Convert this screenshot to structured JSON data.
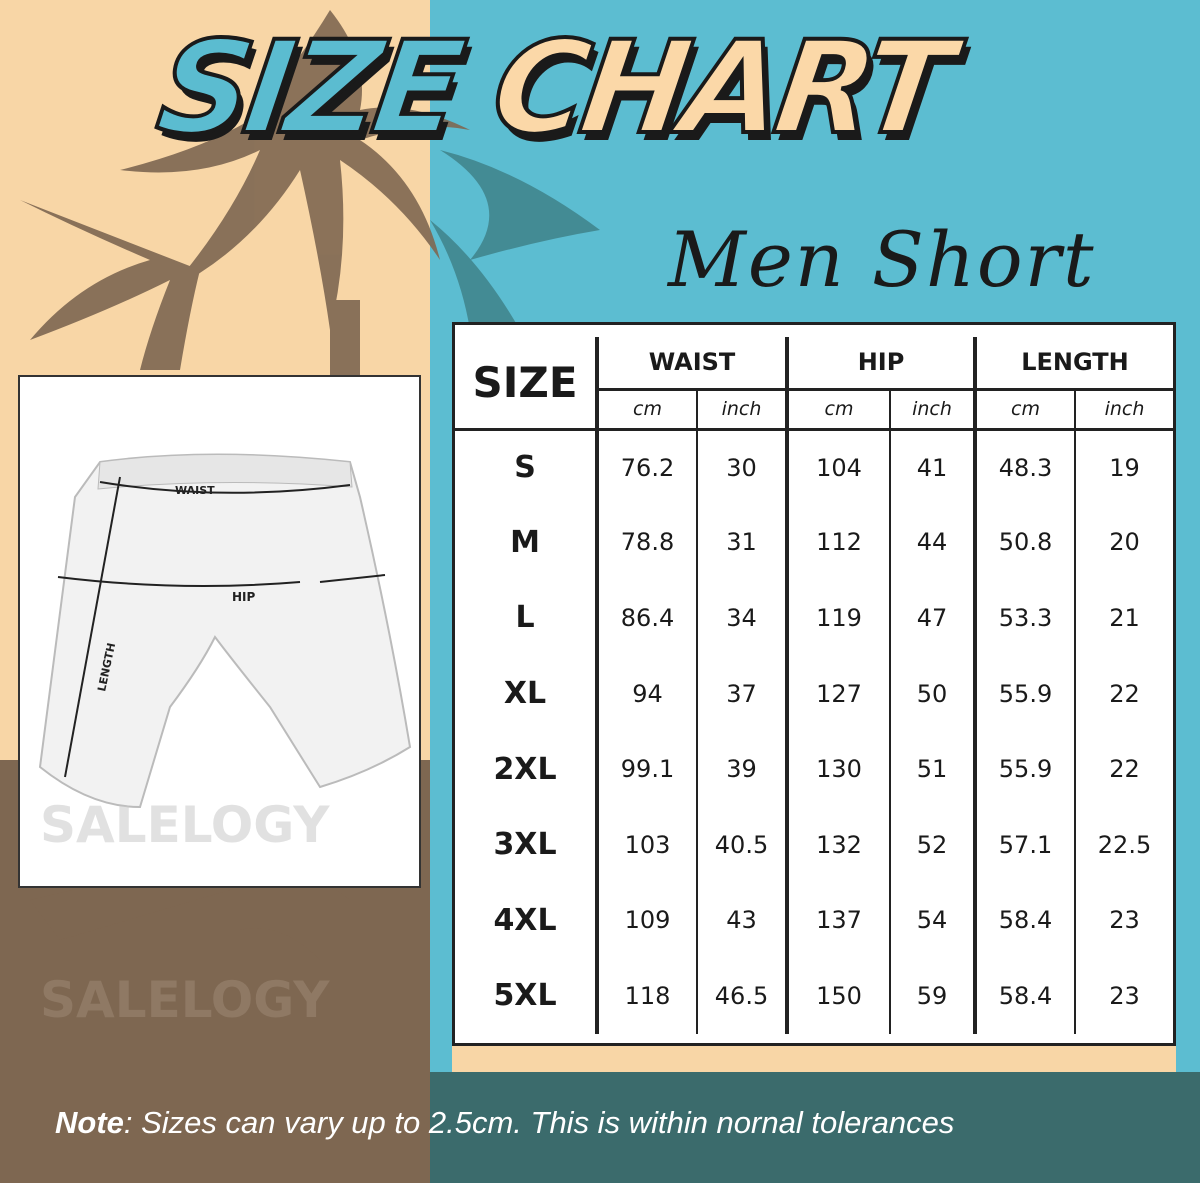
{
  "title": {
    "word1": "SIZE",
    "word2": "CHART"
  },
  "subtitle": "Men Short",
  "watermark": "SALELOGY",
  "illustration": {
    "labels": {
      "waist": "WAIST",
      "hip": "HIP",
      "length": "LENGTH"
    }
  },
  "table": {
    "size_header": "SIZE",
    "groups": [
      "WAIST",
      "HIP",
      "LENGTH"
    ],
    "units": [
      "cm",
      "inch",
      "cm",
      "inch",
      "cm",
      "inch"
    ],
    "rows": [
      {
        "size": "S",
        "values": [
          "76.2",
          "30",
          "104",
          "41",
          "48.3",
          "19"
        ]
      },
      {
        "size": "M",
        "values": [
          "78.8",
          "31",
          "112",
          "44",
          "50.8",
          "20"
        ]
      },
      {
        "size": "L",
        "values": [
          "86.4",
          "34",
          "119",
          "47",
          "53.3",
          "21"
        ]
      },
      {
        "size": "XL",
        "values": [
          "94",
          "37",
          "127",
          "50",
          "55.9",
          "22"
        ]
      },
      {
        "size": "2XL",
        "values": [
          "99.1",
          "39",
          "130",
          "51",
          "55.9",
          "22"
        ]
      },
      {
        "size": "3XL",
        "values": [
          "103",
          "40.5",
          "132",
          "52",
          "57.1",
          "22.5"
        ]
      },
      {
        "size": "4XL",
        "values": [
          "109",
          "43",
          "137",
          "54",
          "58.4",
          "23"
        ]
      },
      {
        "size": "5XL",
        "values": [
          "118",
          "46.5",
          "150",
          "59",
          "58.4",
          "23"
        ]
      }
    ]
  },
  "note": {
    "label": "Note",
    "text": ": Sizes can vary up to 2.5cm. This is within nornal tolerances"
  },
  "colors": {
    "teal": "#5cbdd1",
    "beige": "#f8d6a6",
    "brown": "#7e6751",
    "dark_teal": "#3b6b6c"
  }
}
